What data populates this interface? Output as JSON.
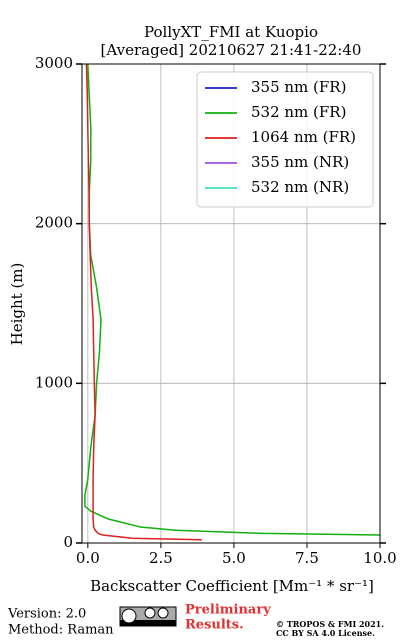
{
  "chart_data": {
    "type": "line",
    "title": [
      "PollyXT_FMI at Kuopio",
      "[Averaged] 20210627 21:41-22:40"
    ],
    "xlabel": "Backscatter Coefficient [Mm⁻¹ * sr⁻¹]",
    "ylabel": "Height (m)",
    "heights": [
      20,
      30,
      50,
      60,
      80,
      100,
      150,
      200,
      230,
      300,
      400,
      600,
      800,
      1000,
      1200,
      1400,
      1600,
      1800,
      2000,
      2200,
      2400,
      2600,
      2800,
      3000
    ],
    "series": [
      {
        "name": "355 nm (FR)",
        "color": "#2020c0",
        "values": [
          null,
          null,
          null,
          null,
          null,
          null,
          null,
          null,
          null,
          null,
          null,
          null,
          null,
          null,
          null,
          null,
          null,
          null,
          null,
          null,
          null,
          null,
          null,
          null
        ]
      },
      {
        "name": "532 nm (FR)",
        "color": "#10b010",
        "values": [
          null,
          null,
          10,
          6,
          3,
          1.8,
          0.7,
          0.1,
          -0.1,
          -0.1,
          0,
          0.1,
          0.25,
          0.3,
          0.4,
          0.45,
          0.3,
          0.1,
          0.05,
          0.05,
          0.1,
          0.1,
          0.05,
          0
        ]
      },
      {
        "name": "1064 nm (FR)",
        "color": "#e02020",
        "values": [
          3.9,
          1.5,
          0.5,
          0.35,
          0.25,
          0.2,
          0.18,
          0.18,
          0.18,
          0.18,
          0.18,
          0.2,
          0.25,
          0.22,
          0.2,
          0.18,
          0.12,
          0.08,
          0.05,
          0.04,
          0.02,
          0,
          -0.02,
          -0.05
        ]
      },
      {
        "name": "355 nm (NR)",
        "color": "#a050e0",
        "values": [
          null,
          null,
          null,
          null,
          null,
          null,
          null,
          null,
          null,
          null,
          null,
          null,
          null,
          null,
          null,
          null,
          null,
          null,
          null,
          null,
          null,
          null,
          null,
          null
        ]
      },
      {
        "name": "532 nm (NR)",
        "color": "#40e0c0",
        "values": [
          null,
          null,
          null,
          null,
          null,
          null,
          null,
          null,
          null,
          null,
          null,
          null,
          null,
          null,
          null,
          null,
          null,
          null,
          null,
          null,
          null,
          null,
          null,
          null
        ]
      }
    ],
    "xlim": [
      -0.2,
      10
    ],
    "xticks": [
      {
        "value": 0,
        "label": "0.0"
      },
      {
        "value": 2.5,
        "label": "2.5"
      },
      {
        "value": 5,
        "label": "5.0"
      },
      {
        "value": 7.5,
        "label": "7.5"
      },
      {
        "value": 10,
        "label": "10.0"
      }
    ],
    "ylim": [
      0,
      3000
    ],
    "yticks": [
      0,
      1000,
      2000,
      3000
    ],
    "grid": true,
    "legend": "upper right",
    "annotations": [
      "Version: 2.0",
      "Method: Raman",
      "Preliminary",
      "Results.",
      "© TROPOS & FMI 2021.",
      "CC BY SA 4.0 License."
    ]
  }
}
